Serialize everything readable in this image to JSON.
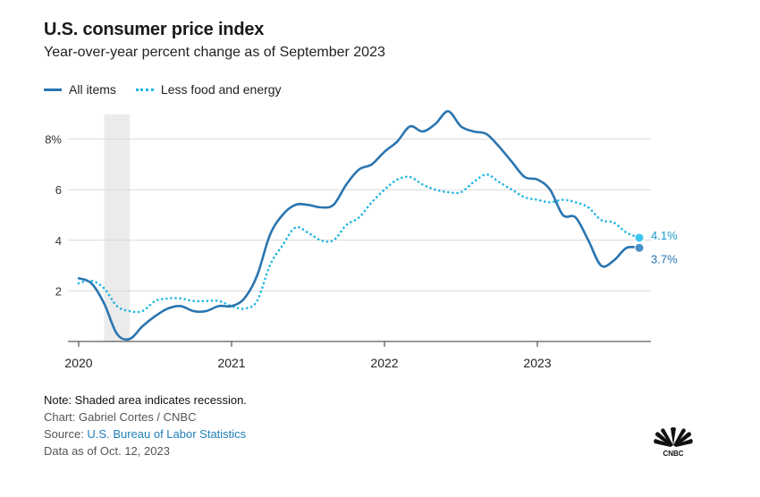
{
  "header": {
    "title": "U.S. consumer price index",
    "subtitle": "Year-over-year percent change as of September 2023"
  },
  "legend": {
    "all_items": "All items",
    "core": "Less food and energy"
  },
  "colors": {
    "all_items": "#2a75b0",
    "core": "#1fb6e3",
    "recession": "#ebebeb",
    "grid": "#d9d9d9"
  },
  "chart_data": {
    "type": "line",
    "title": "U.S. consumer price index",
    "subtitle": "Year-over-year percent change as of September 2023",
    "xlabel": "",
    "ylabel": "",
    "x_start": "2020-01",
    "x_end": "2023-09",
    "xlim": [
      2020.0,
      2023.75
    ],
    "ylim": [
      0,
      9.5
    ],
    "x_ticks": [
      {
        "value": 2020,
        "label": "2020"
      },
      {
        "value": 2021,
        "label": "2021"
      },
      {
        "value": 2022,
        "label": "2022"
      },
      {
        "value": 2023,
        "label": "2023"
      }
    ],
    "y_ticks": [
      {
        "value": 2,
        "label": "2"
      },
      {
        "value": 4,
        "label": "4"
      },
      {
        "value": 6,
        "label": "6"
      },
      {
        "value": 8,
        "label": "8%"
      }
    ],
    "recession": {
      "start": 2020.167,
      "end": 2020.333
    },
    "series": [
      {
        "name": "All items",
        "style": "solid",
        "values": [
          2.5,
          2.3,
          1.5,
          0.3,
          0.1,
          0.6,
          1.0,
          1.3,
          1.4,
          1.2,
          1.2,
          1.4,
          1.4,
          1.7,
          2.6,
          4.2,
          5.0,
          5.4,
          5.4,
          5.3,
          5.4,
          6.2,
          6.8,
          7.0,
          7.5,
          7.9,
          8.5,
          8.3,
          8.6,
          9.1,
          8.5,
          8.3,
          8.2,
          7.7,
          7.1,
          6.5,
          6.4,
          6.0,
          5.0,
          4.9,
          4.0,
          3.0,
          3.2,
          3.7,
          3.7
        ],
        "end_label": "3.7%"
      },
      {
        "name": "Less food and energy",
        "style": "dotted",
        "values": [
          2.3,
          2.4,
          2.1,
          1.4,
          1.2,
          1.2,
          1.6,
          1.7,
          1.7,
          1.6,
          1.6,
          1.6,
          1.4,
          1.3,
          1.6,
          3.0,
          3.8,
          4.5,
          4.3,
          4.0,
          4.0,
          4.6,
          4.9,
          5.5,
          6.0,
          6.4,
          6.5,
          6.2,
          6.0,
          5.9,
          5.9,
          6.3,
          6.6,
          6.3,
          6.0,
          5.7,
          5.6,
          5.5,
          5.6,
          5.5,
          5.3,
          4.8,
          4.7,
          4.3,
          4.1
        ],
        "end_label": "4.1%"
      }
    ]
  },
  "notes": {
    "note": "Note: Shaded area indicates recession.",
    "credit": "Chart: Gabriel Cortes / CNBC",
    "source_prefix": "Source: ",
    "source_link": "U.S. Bureau of Labor Statistics",
    "data_as_of": "Data as of Oct. 12, 2023"
  },
  "logo": {
    "icon": "cnbc-peacock-icon",
    "text": "CNBC"
  }
}
